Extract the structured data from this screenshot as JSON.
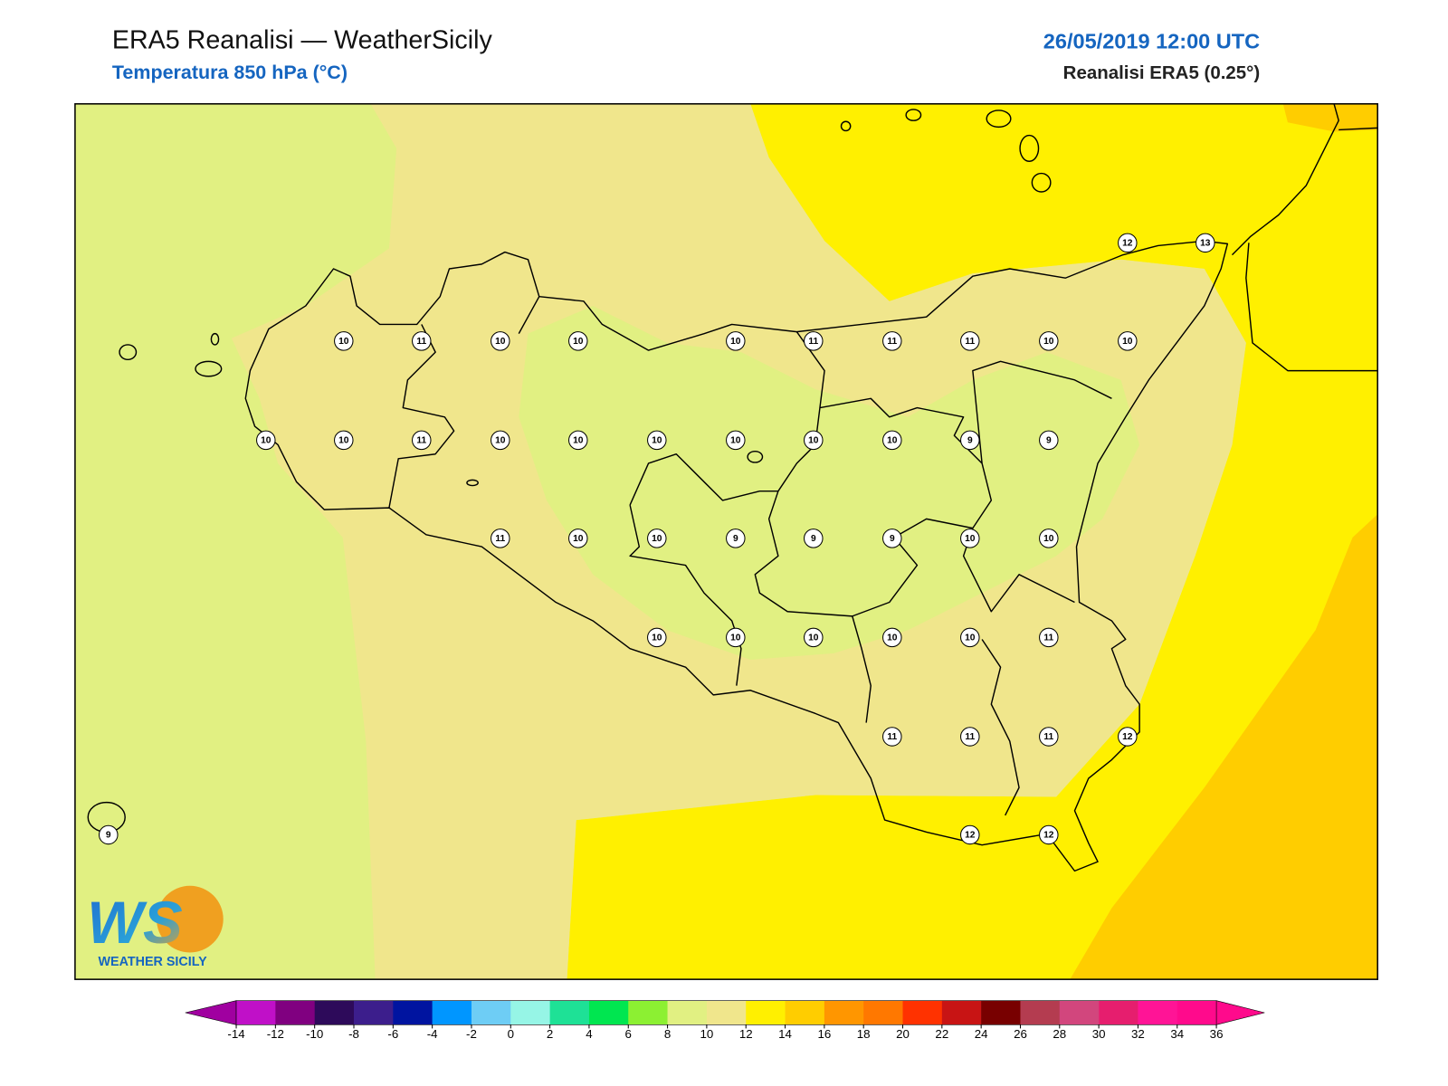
{
  "header": {
    "title": "ERA5 Reanalisi — WeatherSicily",
    "subtitle": "Temperatura 850 hPa (°C)",
    "datetime": "26/05/2019 12:00 UTC",
    "source": "Reanalisi ERA5 (0.25°)"
  },
  "stations": [
    12,
    13,
    10,
    11,
    10,
    10,
    10,
    11,
    11,
    11,
    10,
    10,
    10,
    10,
    11,
    10,
    10,
    10,
    10,
    10,
    10,
    9,
    9,
    11,
    10,
    10,
    9,
    9,
    9,
    10,
    10,
    10,
    10,
    10,
    10,
    10,
    11,
    11,
    11,
    11,
    12,
    9,
    12,
    12
  ],
  "colorbar": {
    "ticks": [
      -14,
      -12,
      -10,
      -8,
      -6,
      -4,
      -2,
      0,
      2,
      4,
      6,
      8,
      10,
      12,
      14,
      16,
      18,
      20,
      22,
      24,
      26,
      28,
      30,
      32,
      34,
      36
    ],
    "colors": [
      "#c010c8",
      "#800080",
      "#2d0a5a",
      "#3c1e8c",
      "#0014a0",
      "#0096ff",
      "#6ecdf5",
      "#96f5e6",
      "#1ee196",
      "#00e650",
      "#8cf032",
      "#e1f082",
      "#f0e68c",
      "#fff000",
      "#ffcd00",
      "#ff9600",
      "#ff7800",
      "#ff3200",
      "#c81414",
      "#780000",
      "#b43c50",
      "#d2467d",
      "#e61e6e",
      "#ff1496",
      "#ff0a8c"
    ],
    "under_color": "#a000a0",
    "over_color": "#ff0a8c"
  },
  "logo": {
    "mark": "WS",
    "name": "WEATHER SICILY"
  }
}
